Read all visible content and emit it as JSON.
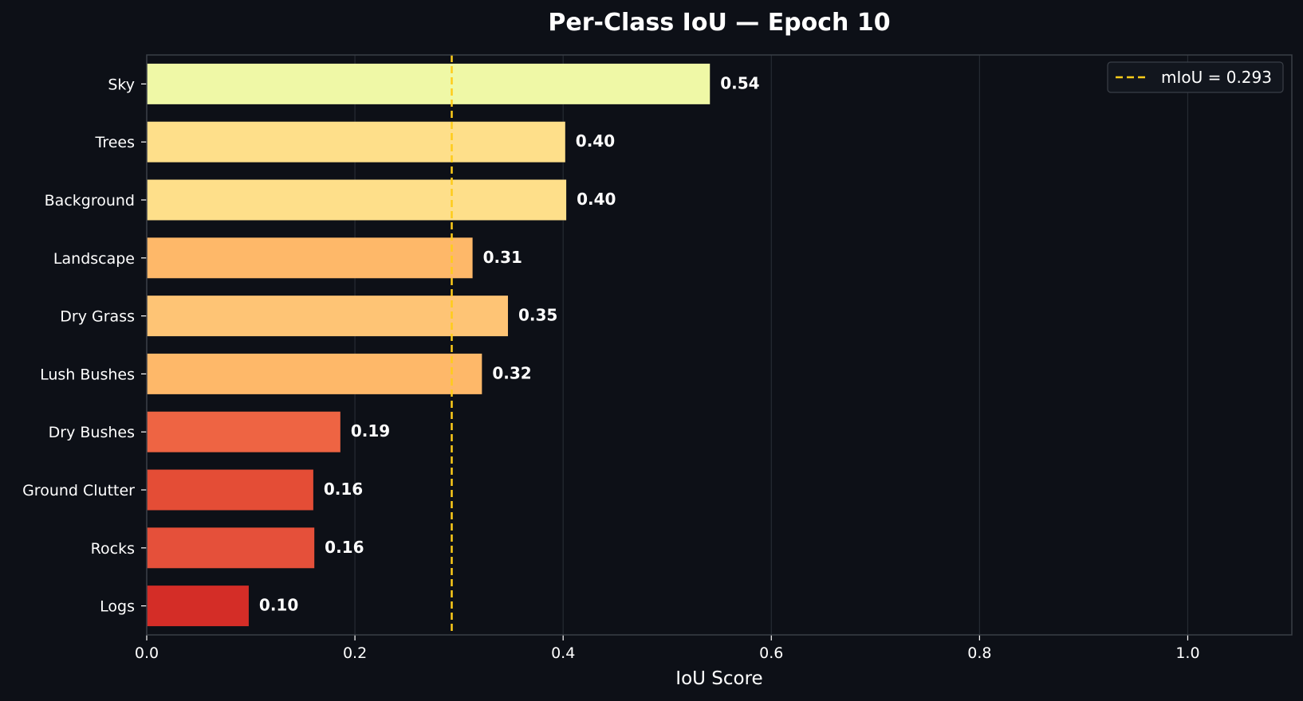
{
  "chart_data": {
    "type": "bar",
    "orientation": "horizontal",
    "title": "Per-Class IoU — Epoch 10",
    "xlabel": "IoU Score",
    "ylabel": "",
    "xlim": [
      0.0,
      1.1
    ],
    "xticks": [
      "0.0",
      "0.2",
      "0.4",
      "0.6",
      "0.8",
      "1.0"
    ],
    "xtick_values": [
      0.0,
      0.2,
      0.4,
      0.6,
      0.8,
      1.0
    ],
    "grid": "vertical",
    "categories": [
      "Sky",
      "Trees",
      "Background",
      "Landscape",
      "Dry Grass",
      "Lush Bushes",
      "Dry Bushes",
      "Ground Clutter",
      "Rocks",
      "Logs"
    ],
    "values": [
      0.541,
      0.402,
      0.403,
      0.313,
      0.347,
      0.322,
      0.186,
      0.16,
      0.161,
      0.098
    ],
    "value_labels": [
      "0.54",
      "0.40",
      "0.40",
      "0.31",
      "0.35",
      "0.32",
      "0.19",
      "0.16",
      "0.16",
      "0.10"
    ],
    "bar_colors": [
      "#eff8a6",
      "#fedf8a",
      "#fedf8a",
      "#feb869",
      "#fec475",
      "#feb869",
      "#ee6443",
      "#e44d36",
      "#e5503a",
      "#d42d27"
    ],
    "reference_line": {
      "value": 0.293,
      "label": "mIoU = 0.293",
      "color": "#ffcc1a",
      "style": "dashed"
    },
    "legend_position": "top-right"
  },
  "colors": {
    "background": "#0d1017",
    "axis": "#3a3f47",
    "grid": "#262b33",
    "text": "#ffffff"
  }
}
